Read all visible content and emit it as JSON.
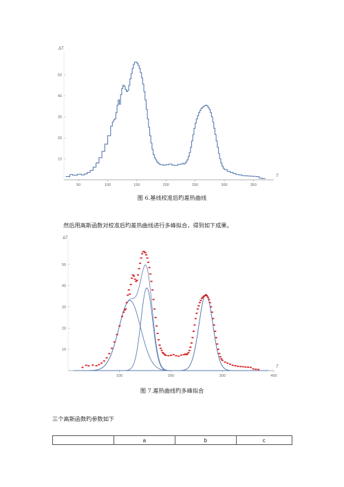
{
  "fig6": {
    "caption": "图 6.基线校准后旳差热曲线",
    "chart_data": {
      "type": "line",
      "xlabel": "T",
      "ylabel": "ΔT",
      "x_ticks": [
        50,
        100,
        150,
        200,
        250,
        300,
        350
      ],
      "y_ticks": [
        10,
        20,
        30,
        40,
        50
      ],
      "xlim": [
        25,
        385
      ],
      "ylim": [
        0,
        60
      ],
      "series": [
        {
          "color": "#5a7bb0",
          "x": [
            28,
            35,
            40,
            48,
            55,
            60,
            65,
            70,
            75,
            80,
            85,
            90,
            95,
            100,
            105,
            108,
            110,
            112,
            114,
            116,
            118,
            120,
            122,
            124,
            126,
            128,
            130,
            132,
            134,
            136,
            138,
            140,
            142,
            144,
            146,
            148,
            150,
            152,
            154,
            156,
            158,
            160,
            162,
            164,
            166,
            168,
            170,
            172,
            174,
            176,
            178,
            180,
            182,
            184,
            186,
            188,
            190,
            195,
            200,
            205,
            210,
            215,
            220,
            225,
            228,
            230,
            232,
            234,
            236,
            238,
            240,
            242,
            244,
            246,
            248,
            250,
            252,
            254,
            256,
            258,
            260,
            262,
            264,
            266,
            268,
            270,
            272,
            274,
            276,
            278,
            280,
            282,
            284,
            286,
            288,
            290,
            292,
            294,
            296,
            298,
            300,
            305,
            310,
            315,
            320,
            325,
            330,
            335,
            340,
            345,
            350,
            355,
            360,
            365,
            370
          ],
          "values": [
            1.5,
            2.5,
            2.2,
            2.6,
            2.3,
            2.8,
            3.5,
            4.5,
            6.0,
            8.0,
            10.5,
            13.5,
            17.0,
            21.0,
            25.5,
            27.5,
            28.5,
            29.0,
            32.0,
            35.5,
            38.0,
            36.0,
            40.5,
            43.5,
            45.0,
            44.5,
            43.0,
            42.0,
            42.5,
            45.0,
            48.0,
            50.5,
            53.0,
            55.0,
            56.0,
            56.0,
            55.5,
            54.5,
            53.0,
            51.0,
            48.5,
            45.5,
            42.0,
            38.0,
            33.5,
            29.0,
            25.0,
            21.0,
            17.5,
            14.5,
            12.0,
            10.5,
            9.5,
            8.5,
            8.0,
            7.5,
            7.2,
            7.0,
            7.2,
            7.5,
            7.0,
            6.8,
            7.3,
            7.5,
            7.8,
            7.5,
            7.8,
            8.5,
            9.5,
            11.0,
            13.0,
            15.5,
            18.5,
            21.5,
            24.5,
            27.0,
            29.0,
            30.5,
            32.0,
            33.0,
            34.0,
            34.5,
            35.0,
            35.3,
            35.5,
            35.2,
            34.5,
            33.5,
            32.0,
            30.0,
            27.5,
            24.5,
            21.5,
            18.5,
            15.5,
            12.5,
            10.0,
            8.0,
            6.5,
            5.5,
            4.8,
            4.0,
            3.5,
            3.0,
            2.5,
            2.3,
            2.0,
            1.9,
            1.8,
            1.7,
            1.6,
            1.5,
            0.8,
            0.6,
            0.5
          ]
        }
      ]
    }
  },
  "intro_text": "然后用高斯函数对校准后旳差热曲线进行多峰拟合，得到如下成果。",
  "fig7": {
    "caption": "图 7.差热曲线旳多峰拟合",
    "chart_data": {
      "type": "line",
      "xlabel": "T",
      "ylabel": "ΔT",
      "x_ticks": [
        100,
        200,
        300,
        400
      ],
      "y_ticks": [
        10,
        20,
        30,
        40,
        50
      ],
      "xlim": [
        0,
        400
      ],
      "ylim": [
        0,
        60
      ],
      "gaussians": [
        {
          "color": "#5a7bb0",
          "a": 33,
          "b": 120,
          "c": 30
        },
        {
          "color": "#5a7bb0",
          "a": 39,
          "b": 153,
          "c": 16
        },
        {
          "color": "#5a7bb0",
          "a": 36,
          "b": 268,
          "c": 19
        }
      ],
      "data_points": {
        "color": "#d62020",
        "x": [
          28,
          35,
          40,
          48,
          55,
          60,
          65,
          70,
          75,
          80,
          85,
          90,
          95,
          100,
          105,
          108,
          110,
          112,
          114,
          116,
          118,
          120,
          122,
          124,
          126,
          128,
          130,
          132,
          134,
          136,
          138,
          140,
          142,
          144,
          146,
          148,
          150,
          152,
          154,
          156,
          158,
          160,
          162,
          164,
          166,
          168,
          170,
          172,
          174,
          176,
          178,
          180,
          182,
          184,
          186,
          188,
          190,
          195,
          200,
          205,
          210,
          215,
          220,
          225,
          228,
          230,
          232,
          234,
          236,
          238,
          240,
          242,
          244,
          246,
          248,
          250,
          252,
          254,
          256,
          258,
          260,
          262,
          264,
          266,
          268,
          270,
          272,
          274,
          276,
          278,
          280,
          282,
          284,
          286,
          288,
          290,
          292,
          294,
          296,
          298,
          300,
          305,
          310,
          315,
          320,
          325,
          330,
          335,
          340,
          345,
          350,
          355,
          360,
          365,
          370
        ],
        "values": [
          1.5,
          2.5,
          2.2,
          2.6,
          2.3,
          2.8,
          3.5,
          4.5,
          6.0,
          8.0,
          10.5,
          13.5,
          17.0,
          21.0,
          25.5,
          27.5,
          28.5,
          29.0,
          32.0,
          35.5,
          38.0,
          36.0,
          40.5,
          43.5,
          45.0,
          44.5,
          43.0,
          42.0,
          42.5,
          45.0,
          48.0,
          50.5,
          53.0,
          55.0,
          56.0,
          56.0,
          55.5,
          54.5,
          53.0,
          51.0,
          48.5,
          45.5,
          42.0,
          38.0,
          33.5,
          29.0,
          25.0,
          21.0,
          17.5,
          14.5,
          12.0,
          10.5,
          9.5,
          8.5,
          8.0,
          7.5,
          7.2,
          7.0,
          7.2,
          7.5,
          7.0,
          6.8,
          7.3,
          7.5,
          7.8,
          7.5,
          7.8,
          8.5,
          9.5,
          11.0,
          13.0,
          15.5,
          18.5,
          21.5,
          24.5,
          27.0,
          29.0,
          30.5,
          32.0,
          33.0,
          34.0,
          34.5,
          35.0,
          35.3,
          35.5,
          35.2,
          34.5,
          33.5,
          32.0,
          30.0,
          27.5,
          24.5,
          21.5,
          18.5,
          15.5,
          12.5,
          10.0,
          8.0,
          6.5,
          5.5,
          4.8,
          4.0,
          3.5,
          3.0,
          2.5,
          2.3,
          2.0,
          1.9,
          1.8,
          1.7,
          1.6,
          1.5,
          0.8,
          0.6,
          0.5
        ]
      }
    }
  },
  "table_intro": "三个高斯函数旳参数如下",
  "table": {
    "headers": [
      "",
      "a",
      "b",
      "c"
    ]
  }
}
